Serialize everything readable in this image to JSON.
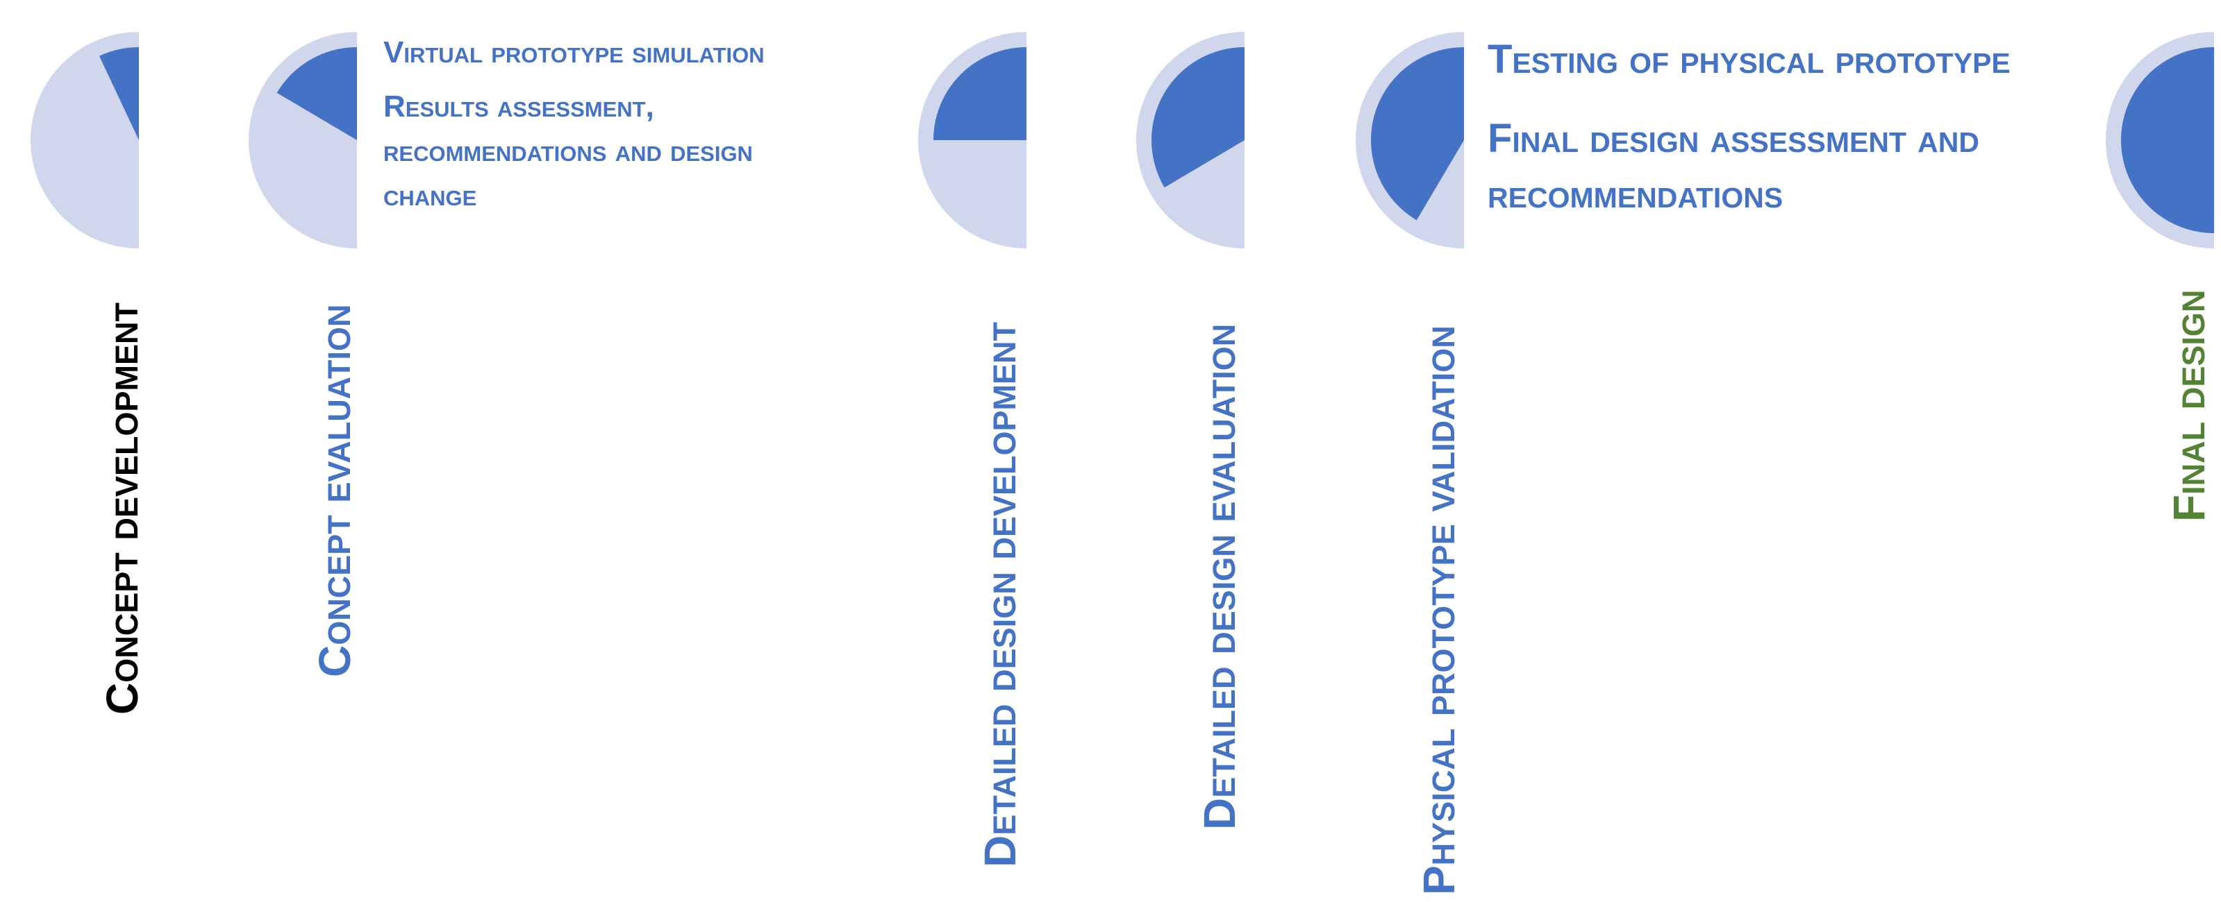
{
  "colors": {
    "ring": "#d0d6ec",
    "fill": "#4472c4",
    "label_default": "#4472c4",
    "label_start": "#000000",
    "label_end": "#548235",
    "note": "#4472c4"
  },
  "phases": [
    {
      "label": "Concept development",
      "progress": 0.14,
      "color_key": "label_start"
    },
    {
      "label": "Concept evaluation",
      "progress": 0.33,
      "color_key": "label_default"
    },
    {
      "label": "Detailed design development",
      "progress": 0.5,
      "color_key": "label_default"
    },
    {
      "label": "Detailed design evaluation",
      "progress": 0.67,
      "color_key": "label_default"
    },
    {
      "label": "Physical prototype validation",
      "progress": 0.83,
      "color_key": "label_default"
    },
    {
      "label": "Final design",
      "progress": 1.0,
      "color_key": "label_end"
    }
  ],
  "notes": {
    "virtual_stage": [
      "Virtual prototype simulation",
      "Results assessment, recommendations and design change"
    ],
    "physical_stage": [
      "Testing of physical prototype",
      "Final design assessment and recommendations"
    ]
  }
}
